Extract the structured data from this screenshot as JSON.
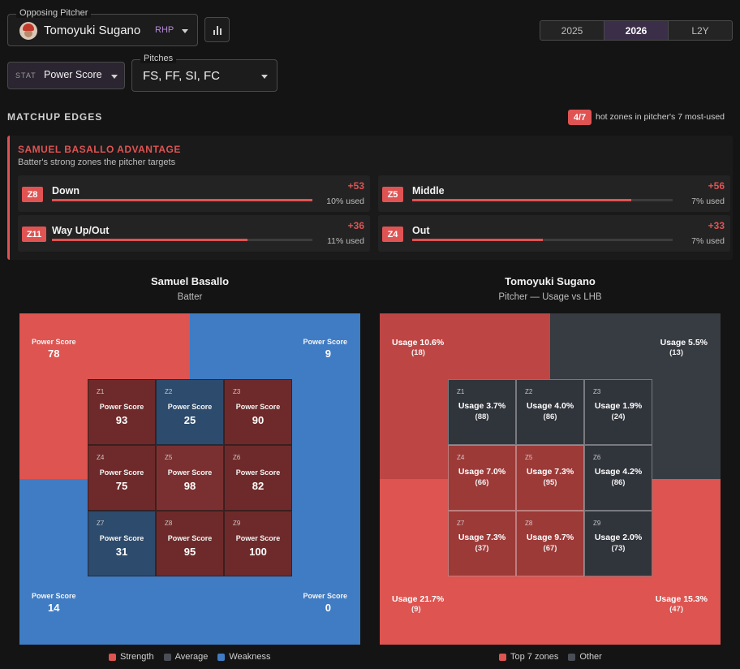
{
  "pitcher_select": {
    "label": "Opposing Pitcher",
    "name": "Tomoyuki Sugano",
    "hand": "RHP"
  },
  "season_tabs": [
    "2025",
    "2026",
    "L2Y"
  ],
  "active_season": "2026",
  "stat_select": {
    "label": "STAT",
    "value": "Power Score"
  },
  "pitches_select": {
    "label": "Pitches",
    "value": "FS, FF, SI, FC"
  },
  "matchup": {
    "title": "MATCHUP EDGES",
    "hot_badge": "4/7",
    "hot_text": "hot zones in pitcher's 7 most-used",
    "advantage_title": "SAMUEL BASALLO ADVANTAGE",
    "advantage_sub": "Batter's strong zones the pitcher targets",
    "edges": [
      {
        "zone": "Z8",
        "name": "Down",
        "delta": "+53",
        "used": "10% used",
        "fill": 1.0
      },
      {
        "zone": "Z5",
        "name": "Middle",
        "delta": "+56",
        "used": "7% used",
        "fill": 0.84
      },
      {
        "zone": "Z11",
        "name": "Way Up/Out",
        "delta": "+36",
        "used": "11% used",
        "fill": 0.75
      },
      {
        "zone": "Z4",
        "name": "Out",
        "delta": "+33",
        "used": "7% used",
        "fill": 0.5
      }
    ]
  },
  "batter_chart": {
    "title": "Samuel Basallo",
    "subtitle": "Batter",
    "metric_label": "Power Score",
    "corners": [
      {
        "pos": "tl",
        "value": "78",
        "kind": "strength"
      },
      {
        "pos": "tr",
        "value": "9",
        "kind": "weakness"
      },
      {
        "pos": "bl",
        "value": "14",
        "kind": "weakness"
      },
      {
        "pos": "br",
        "value": "0",
        "kind": "weakness"
      }
    ],
    "cells": [
      {
        "id": "Z1",
        "value": "93",
        "kind": "strength"
      },
      {
        "id": "Z2",
        "value": "25",
        "kind": "weakness"
      },
      {
        "id": "Z3",
        "value": "90",
        "kind": "strength"
      },
      {
        "id": "Z4",
        "value": "75",
        "kind": "strength"
      },
      {
        "id": "Z5",
        "value": "98",
        "kind": "strength"
      },
      {
        "id": "Z6",
        "value": "82",
        "kind": "strength"
      },
      {
        "id": "Z7",
        "value": "31",
        "kind": "weakness"
      },
      {
        "id": "Z8",
        "value": "95",
        "kind": "strength"
      },
      {
        "id": "Z9",
        "value": "100",
        "kind": "strength"
      }
    ],
    "legend": [
      "Strength",
      "Average",
      "Weakness"
    ]
  },
  "pitcher_chart": {
    "title": "Tomoyuki Sugano",
    "subtitle": "Pitcher — Usage vs LHB",
    "corners": [
      {
        "pos": "tl",
        "usage": "Usage 10.6%",
        "count": "(18)",
        "kind": "top"
      },
      {
        "pos": "tr",
        "usage": "Usage 5.5%",
        "count": "(13)",
        "kind": "other"
      },
      {
        "pos": "bl",
        "usage": "Usage 21.7%",
        "count": "(9)",
        "kind": "top"
      },
      {
        "pos": "br",
        "usage": "Usage 15.3%",
        "count": "(47)",
        "kind": "top"
      }
    ],
    "cells": [
      {
        "id": "Z1",
        "usage": "Usage 3.7%",
        "count": "(88)",
        "kind": "other"
      },
      {
        "id": "Z2",
        "usage": "Usage 4.0%",
        "count": "(86)",
        "kind": "other"
      },
      {
        "id": "Z3",
        "usage": "Usage 1.9%",
        "count": "(24)",
        "kind": "other"
      },
      {
        "id": "Z4",
        "usage": "Usage 7.0%",
        "count": "(66)",
        "kind": "top"
      },
      {
        "id": "Z5",
        "usage": "Usage 7.3%",
        "count": "(95)",
        "kind": "top"
      },
      {
        "id": "Z6",
        "usage": "Usage 4.2%",
        "count": "(86)",
        "kind": "other"
      },
      {
        "id": "Z7",
        "usage": "Usage 7.3%",
        "count": "(37)",
        "kind": "top"
      },
      {
        "id": "Z8",
        "usage": "Usage 9.7%",
        "count": "(67)",
        "kind": "top"
      },
      {
        "id": "Z9",
        "usage": "Usage 2.0%",
        "count": "(73)",
        "kind": "other"
      }
    ],
    "legend": [
      "Top 7 zones",
      "Other"
    ]
  },
  "colors": {
    "strength": "#dd5450",
    "weakness": "#3f7cc4",
    "average": "#3b3f47",
    "top": "#dd5450",
    "other": "#373b42"
  }
}
